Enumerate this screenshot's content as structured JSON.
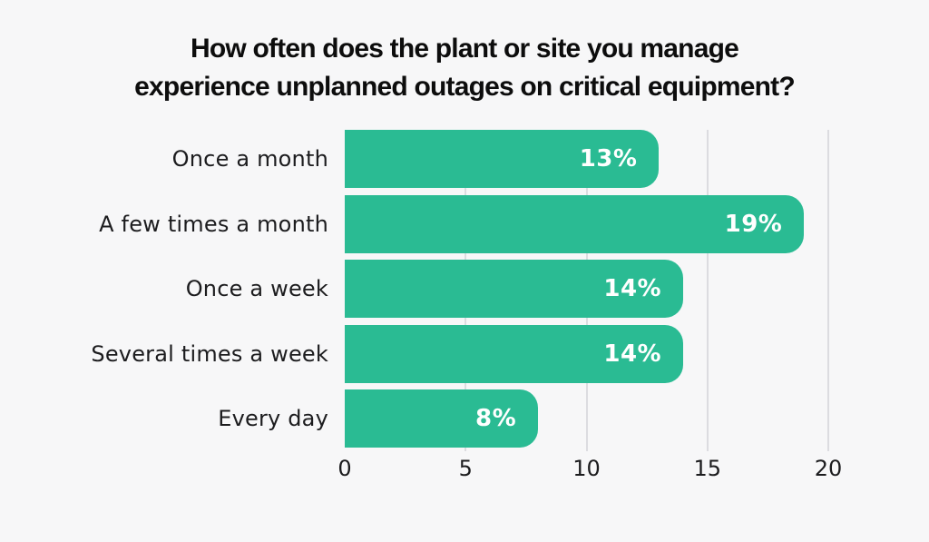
{
  "title": "How often does the plant or site you manage\nexperience unplanned outages on critical equipment?",
  "colors": {
    "background": "#f7f7f8",
    "bar": "#2ABB93",
    "gridline": "#dcdce0",
    "title_text": "#0d0d0d",
    "axis_text": "#1c1c1e",
    "value_text": "#ffffff"
  },
  "chart_data": {
    "type": "bar",
    "orientation": "horizontal",
    "title": "How often does the plant or site you manage\nexperience unplanned outages on critical equipment?",
    "categories": [
      "Once a month",
      "A few times a month",
      "Once a week",
      "Several times a week",
      "Every day"
    ],
    "values": [
      13,
      19,
      14,
      14,
      8
    ],
    "value_labels": [
      "13%",
      "19%",
      "14%",
      "14%",
      "8%"
    ],
    "xlabel": "",
    "ylabel": "",
    "xlim": [
      0,
      20
    ],
    "xticks": [
      0,
      5,
      10,
      15,
      20
    ],
    "xtick_labels": [
      "0",
      "5",
      "10",
      "15",
      "20"
    ],
    "grid": true,
    "gridlines_at": [
      5,
      10,
      15,
      20
    ],
    "legend": false
  }
}
